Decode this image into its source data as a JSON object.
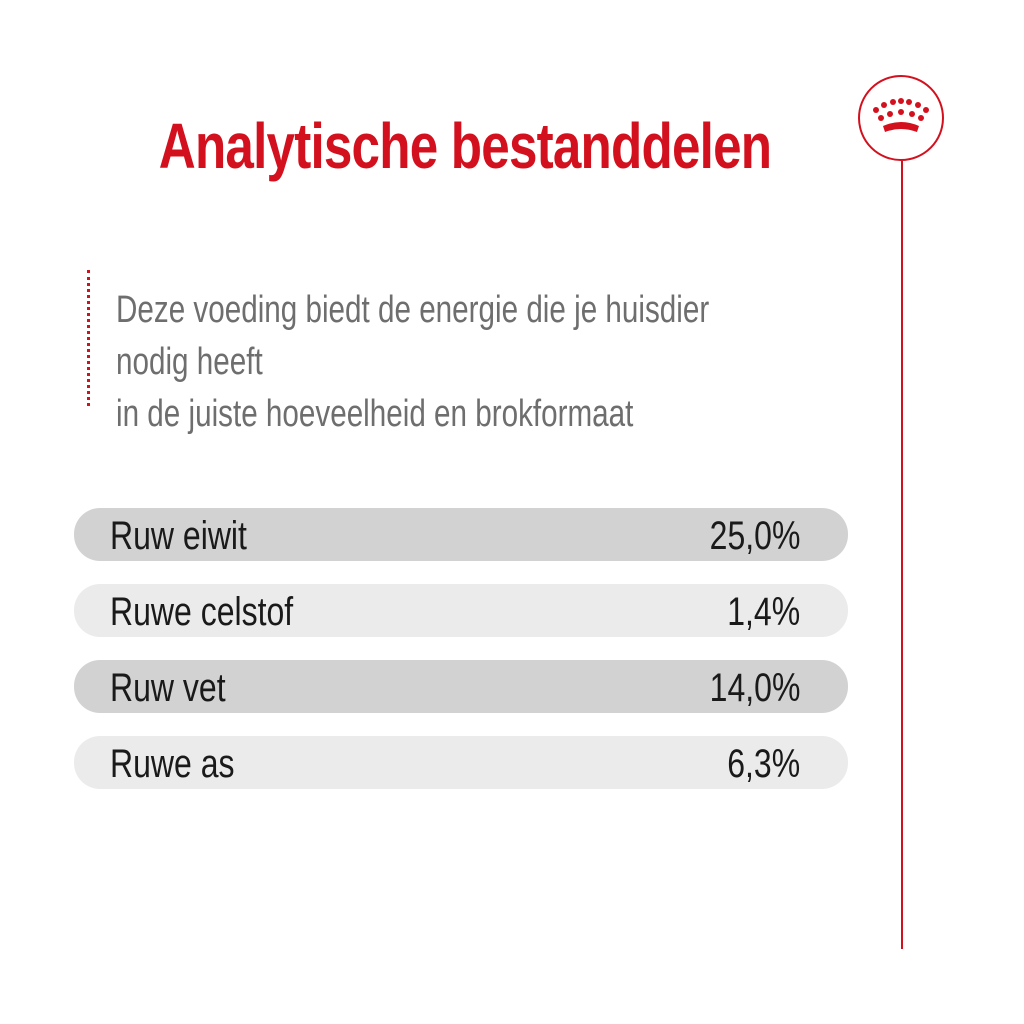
{
  "header": {
    "title": "Analytische bestanddelen"
  },
  "brand": {
    "icon": "crown-icon",
    "accent_color": "#d3111e"
  },
  "intro": {
    "line1": "Deze voeding biedt de energie die je huisdier nodig heeft",
    "line2": "in de juiste hoeveelheid en brokformaat"
  },
  "nutrients": [
    {
      "label": "Ruw eiwit",
      "value": "25,0%"
    },
    {
      "label": "Ruwe celstof",
      "value": "1,4%"
    },
    {
      "label": "Ruw vet",
      "value": "14,0%"
    },
    {
      "label": "Ruwe as",
      "value": "6,3%"
    }
  ]
}
